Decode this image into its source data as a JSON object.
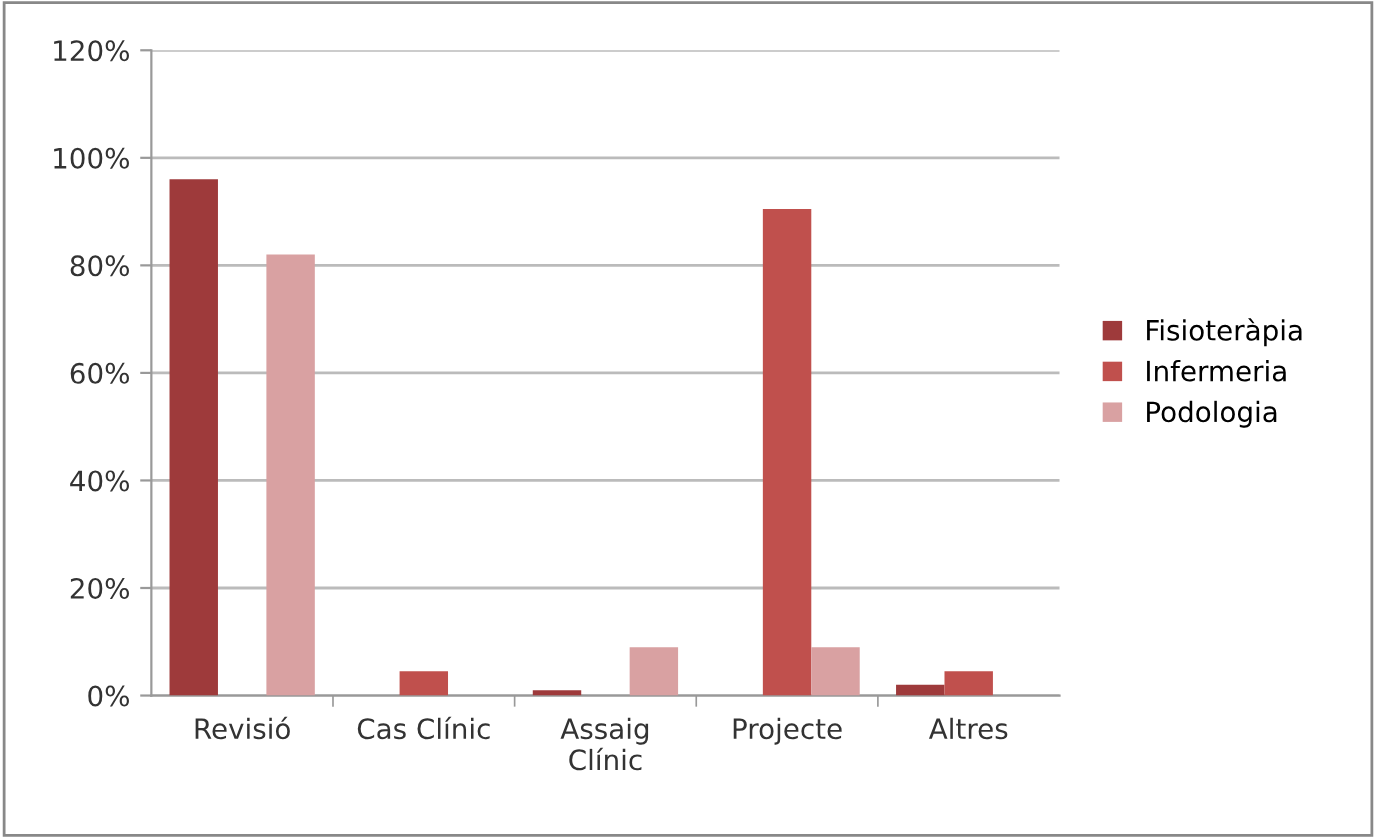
{
  "chart_data": {
    "type": "bar",
    "categories": [
      "Revisió",
      "Cas Clínic",
      "Assaig\nClínic",
      "Projecte",
      "Altres"
    ],
    "series": [
      {
        "name": "Fisioteràpia",
        "color": "#9e3a3b",
        "values": [
          96,
          0,
          1,
          0,
          2
        ]
      },
      {
        "name": "Infermeria",
        "color": "#c0504d",
        "values": [
          0,
          4.5,
          0,
          90.5,
          4.5
        ]
      },
      {
        "name": "Podologia",
        "color": "#d9a1a2",
        "values": [
          82,
          0,
          9,
          9,
          0
        ]
      }
    ],
    "ylim": [
      0,
      120
    ],
    "yticks": [
      {
        "value": 0,
        "label": "0%"
      },
      {
        "value": 20,
        "label": "20%"
      },
      {
        "value": 40,
        "label": "40%"
      },
      {
        "value": 60,
        "label": "60%"
      },
      {
        "value": 80,
        "label": "80%"
      },
      {
        "value": 100,
        "label": "100%"
      },
      {
        "value": 120,
        "label": "120%"
      }
    ],
    "grid": "y",
    "legend": "right"
  }
}
